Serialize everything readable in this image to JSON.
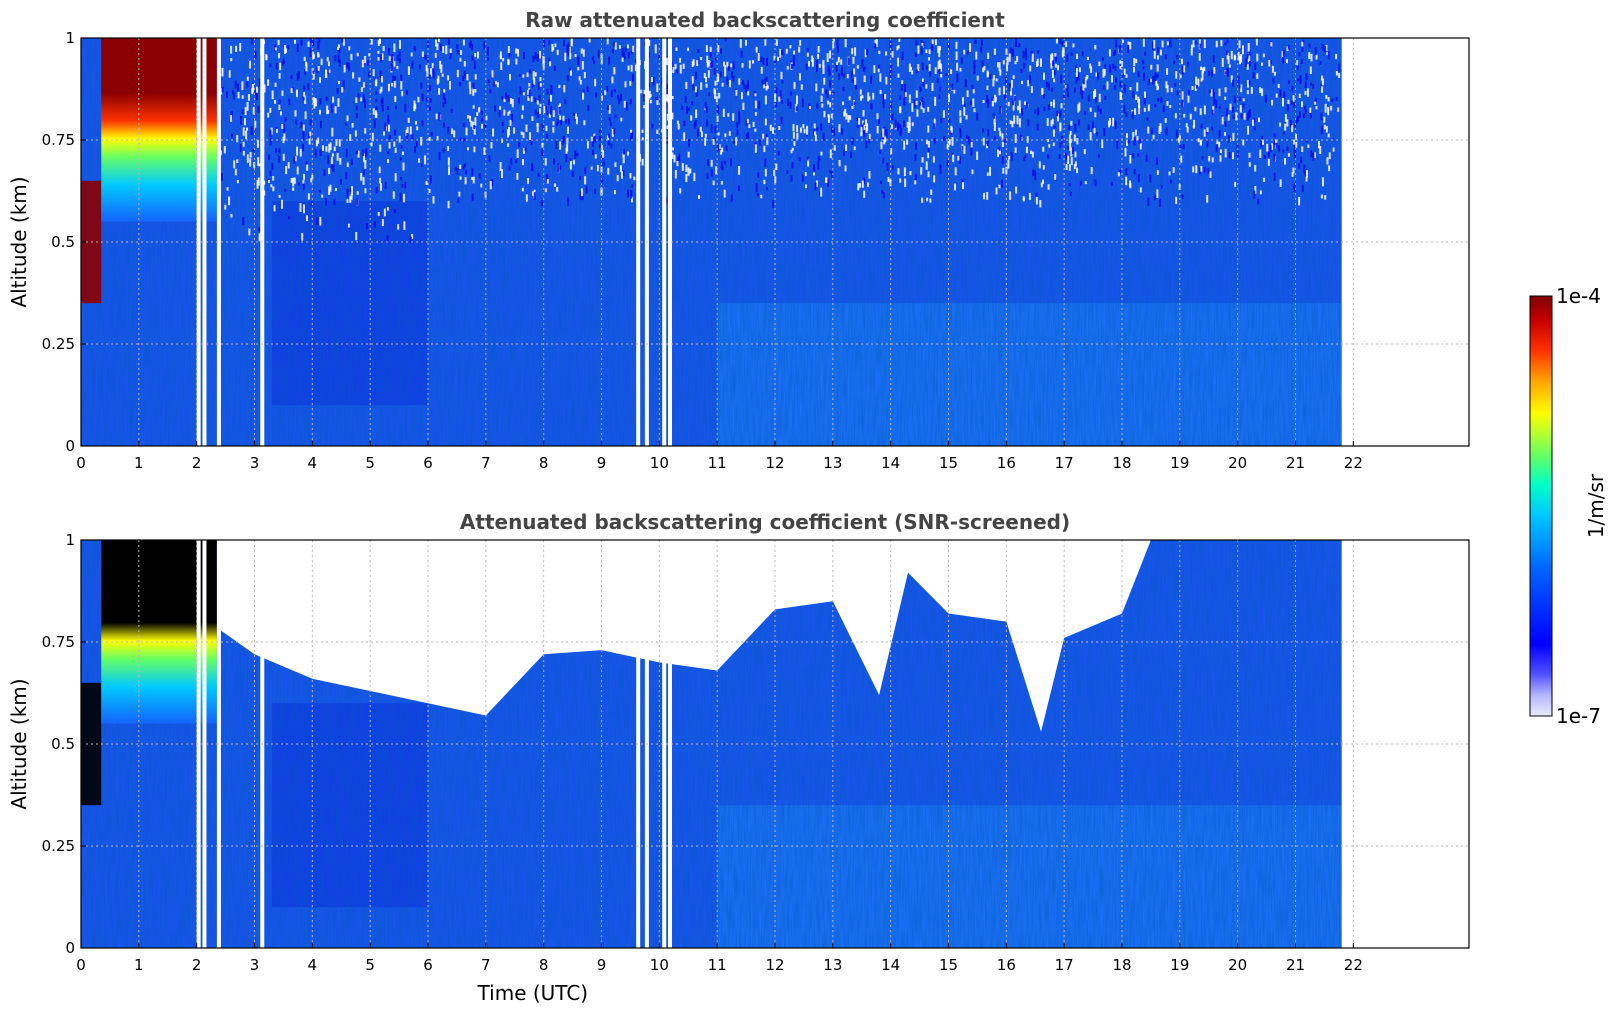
{
  "chart_data": [
    {
      "type": "heatmap",
      "title": "Raw attenuated backscattering coefficient",
      "xlabel": "",
      "ylabel": "Altitude (km)",
      "xlim": [
        0,
        24
      ],
      "ylim": [
        0,
        1
      ],
      "x_ticks": [
        0,
        1,
        2,
        3,
        4,
        5,
        6,
        7,
        8,
        9,
        10,
        11,
        12,
        13,
        14,
        15,
        16,
        17,
        18,
        19,
        20,
        21,
        22
      ],
      "y_ticks": [
        0,
        0.25,
        0.5,
        0.75,
        1
      ],
      "y_tick_labels": [
        "0",
        "0.25",
        "0.5",
        "0.75",
        "1"
      ],
      "grid": true,
      "data_extent_hours": [
        0,
        21.8
      ],
      "gap_times_hours": [
        2.0,
        2.1,
        2.35,
        3.1,
        9.6,
        9.75,
        10.05,
        10.15
      ],
      "features": {
        "cloud_layer": {
          "time_range": [
            0.35,
            2.35
          ],
          "altitude_range": [
            0.75,
            1.0
          ],
          "level": "saturated ~1e-4"
        },
        "low_cloud": {
          "time_range": [
            0.0,
            0.35
          ],
          "altitude_range": [
            0.35,
            0.65
          ]
        }
      },
      "screened": false
    },
    {
      "type": "heatmap",
      "title": "Attenuated backscattering coefficient (SNR-screened)",
      "xlabel": "Time (UTC)",
      "ylabel": "Altitude (km)",
      "xlim": [
        0,
        24
      ],
      "ylim": [
        0,
        1
      ],
      "x_ticks": [
        0,
        1,
        2,
        3,
        4,
        5,
        6,
        7,
        8,
        9,
        10,
        11,
        12,
        13,
        14,
        15,
        16,
        17,
        18,
        19,
        20,
        21,
        22
      ],
      "y_ticks": [
        0,
        0.25,
        0.5,
        0.75,
        1
      ],
      "y_tick_labels": [
        "0",
        "0.25",
        "0.5",
        "0.75",
        "1"
      ],
      "grid": true,
      "data_extent_hours": [
        0,
        21.8
      ],
      "gap_times_hours": [
        2.0,
        2.1,
        2.35,
        3.1,
        9.6,
        9.75,
        10.05,
        10.15
      ],
      "screened_top_km": [
        [
          2.4,
          0.78
        ],
        [
          3.0,
          0.72
        ],
        [
          4.0,
          0.66
        ],
        [
          5.0,
          0.63
        ],
        [
          6.0,
          0.6
        ],
        [
          7.0,
          0.57
        ],
        [
          8.0,
          0.72
        ],
        [
          9.0,
          0.73
        ],
        [
          10.0,
          0.7
        ],
        [
          11.0,
          0.68
        ],
        [
          12.0,
          0.83
        ],
        [
          13.0,
          0.85
        ],
        [
          13.8,
          0.62
        ],
        [
          14.3,
          0.92
        ],
        [
          15.0,
          0.82
        ],
        [
          16.0,
          0.8
        ],
        [
          16.6,
          0.53
        ],
        [
          17.0,
          0.76
        ],
        [
          18.0,
          0.82
        ],
        [
          18.5,
          1.0
        ],
        [
          21.8,
          1.0
        ]
      ],
      "features": {
        "cloud_layer": {
          "time_range": [
            0.35,
            2.35
          ],
          "altitude_range": [
            0.75,
            1.0
          ],
          "level": "saturated (black)"
        },
        "low_cloud": {
          "time_range": [
            0.0,
            0.35
          ],
          "altitude_range": [
            0.35,
            0.65
          ]
        }
      },
      "screened": true
    }
  ],
  "colorbar": {
    "label": "1/m/sr",
    "max_label": "1e-4",
    "min_label": "1e-7",
    "scale": "log",
    "range": [
      1e-07,
      0.0001
    ]
  },
  "colors": {
    "background_blue": "#1b55f0",
    "bright_blue": "#1e88ff",
    "dark_blue": "#0a22e0",
    "cloud_red": "#8b0000",
    "saturated_black": "#000000"
  }
}
